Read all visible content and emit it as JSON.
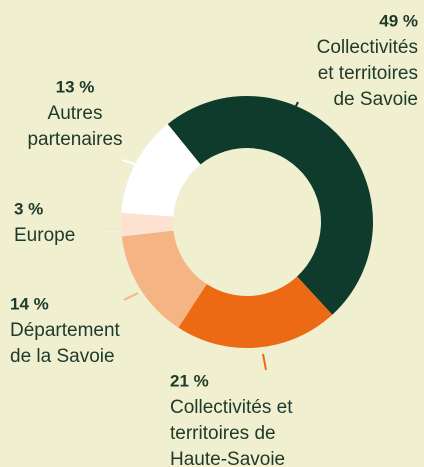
{
  "chart_data": {
    "type": "donut",
    "categories": [
      "Collectivités\net territoires\nde Savoie",
      "Collectivités et\nterritoires de\nHaute-Savoie",
      "Département\nde la Savoie",
      "Europe",
      "Autres\npartenaires"
    ],
    "values": [
      49,
      21,
      14,
      3,
      13
    ],
    "value_labels": [
      "49 %",
      "21 %",
      "14 %",
      "3 %",
      "13 %"
    ],
    "colors": [
      "#0e3b2b",
      "#ec6a13",
      "#f5b483",
      "#fde2d2",
      "#ffffff"
    ]
  }
}
